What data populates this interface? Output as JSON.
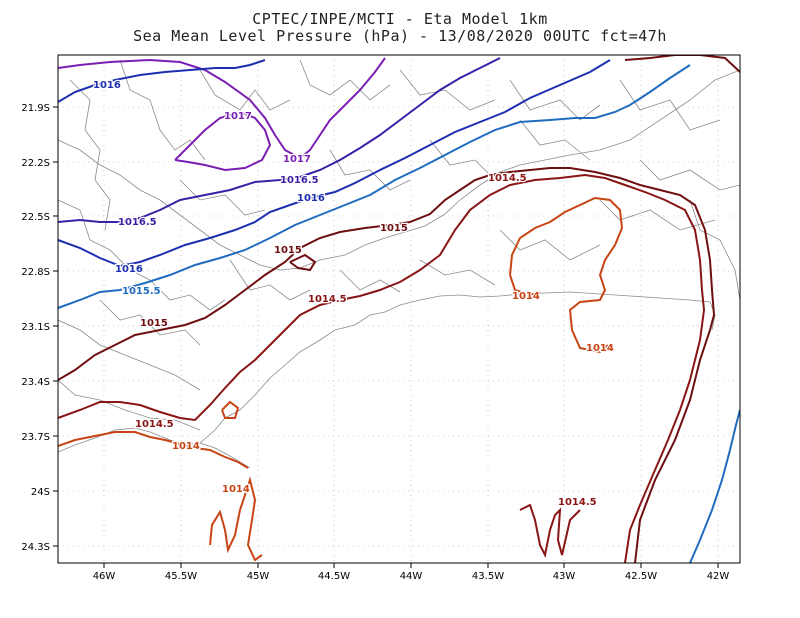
{
  "title_line1": "CPTEC/INPE/MCTI -  Eta Model 1km",
  "title_line2": "Sea Mean Level Pressure (hPa) - 13/08/2020 00UTC fct=47h",
  "axes": {
    "x_ticks": [
      "46W",
      "45.5W",
      "45W",
      "44.5W",
      "44W",
      "43.5W",
      "43W",
      "42.5W",
      "42W"
    ],
    "y_ticks": [
      "21.9S",
      "22.2S",
      "22.5S",
      "22.8S",
      "23.1S",
      "23.4S",
      "23.7S",
      "24S",
      "24.3S"
    ]
  },
  "colors": {
    "c1017": "#7a1fb4",
    "c1016_5": "#3c1fa6",
    "c1016": "#1c2fb0",
    "c1015_5": "#1f6cc0",
    "c1015": "#6e0f12",
    "c1014_5": "#8a1515",
    "c1014": "#c84414",
    "border": "#8c8c8c",
    "grid": "#a8a8a8"
  },
  "contour_labels": [
    {
      "name": "label-1016-a",
      "text": "1016",
      "color": "c1016"
    },
    {
      "name": "label-1017-a",
      "text": "1017",
      "color": "c1017"
    },
    {
      "name": "label-1017-b",
      "text": "1017",
      "color": "c1017"
    },
    {
      "name": "label-1016_5-a",
      "text": "1016.5",
      "color": "c1016_5"
    },
    {
      "name": "label-1016-b",
      "text": "1016",
      "color": "c1016"
    },
    {
      "name": "label-1016_5-b",
      "text": "1016.5",
      "color": "c1016_5"
    },
    {
      "name": "label-1016-c",
      "text": "1016",
      "color": "c1016"
    },
    {
      "name": "label-1015_5-a",
      "text": "1015.5",
      "color": "c1015_5"
    },
    {
      "name": "label-1015-a",
      "text": "1015",
      "color": "c1015"
    },
    {
      "name": "label-1015-b",
      "text": "1015",
      "color": "c1015"
    },
    {
      "name": "label-1015-c",
      "text": "1015",
      "color": "c1015"
    },
    {
      "name": "label-1014_5-a",
      "text": "1014.5",
      "color": "c1014_5"
    },
    {
      "name": "label-1014_5-b",
      "text": "1014.5",
      "color": "c1014_5"
    },
    {
      "name": "label-1014_5-c",
      "text": "1014.5",
      "color": "c1014_5"
    },
    {
      "name": "label-1014_5-d",
      "text": "1014.5",
      "color": "c1014_5"
    },
    {
      "name": "label-1014-a",
      "text": "1014",
      "color": "c1014"
    },
    {
      "name": "label-1014-b",
      "text": "1014",
      "color": "c1014"
    },
    {
      "name": "label-1014-c",
      "text": "1014",
      "color": "c1014"
    },
    {
      "name": "label-1014-d",
      "text": "1014",
      "color": "c1014"
    }
  ]
}
